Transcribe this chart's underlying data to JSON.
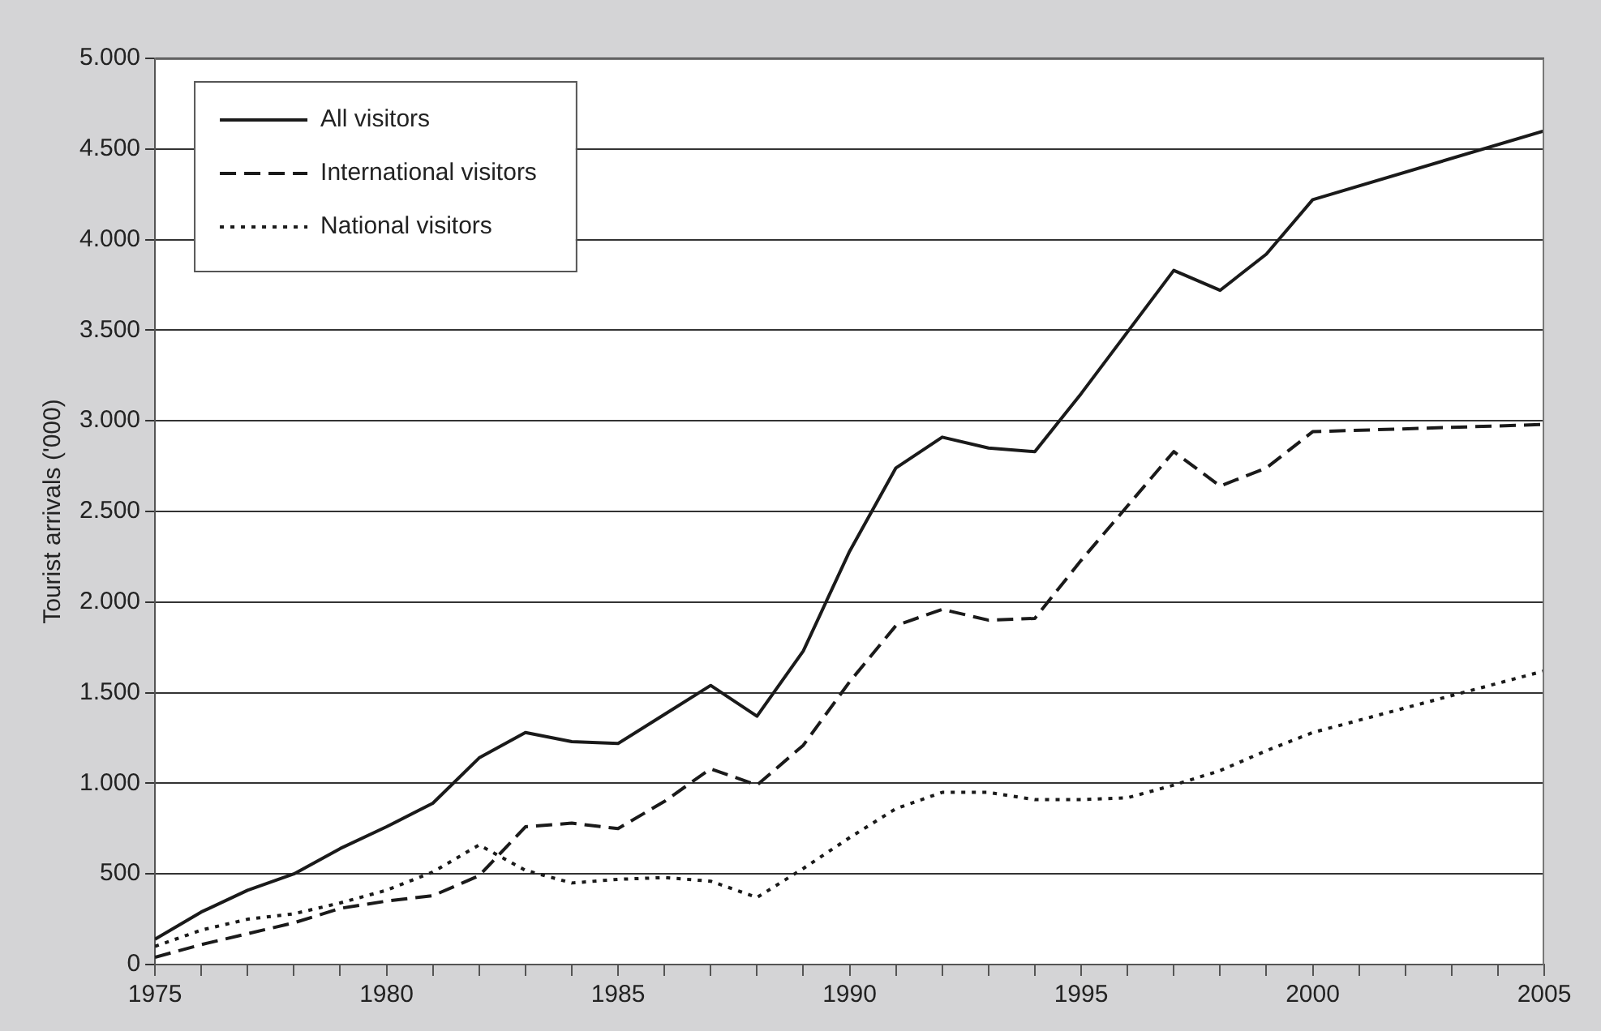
{
  "chart_data": {
    "type": "line",
    "ylabel": "Tourist arrivals ('000)",
    "x": [
      1975,
      1976,
      1977,
      1978,
      1979,
      1980,
      1981,
      1982,
      1983,
      1984,
      1985,
      1986,
      1987,
      1988,
      1989,
      1990,
      1991,
      1992,
      1993,
      1994,
      1995,
      1996,
      1997,
      1998,
      1999,
      2000,
      2005
    ],
    "series": [
      {
        "name": "All visitors",
        "color": "#1a1a1a",
        "line_style": "solid",
        "values": [
          140,
          290,
          410,
          500,
          640,
          760,
          890,
          1140,
          1280,
          1230,
          1220,
          1380,
          1540,
          1370,
          1730,
          2280,
          2740,
          2910,
          2850,
          2830,
          3150,
          3490,
          3830,
          3720,
          3920,
          4220,
          4600
        ]
      },
      {
        "name": "International visitors",
        "color": "#1a1a1a",
        "line_style": "dashed",
        "values": [
          40,
          110,
          170,
          230,
          310,
          350,
          380,
          490,
          760,
          780,
          750,
          900,
          1080,
          990,
          1210,
          1560,
          1870,
          1960,
          1900,
          1910,
          2230,
          2530,
          2830,
          2640,
          2740,
          2940,
          2980
        ]
      },
      {
        "name": "National visitors",
        "color": "#1a1a1a",
        "line_style": "dotted",
        "values": [
          100,
          190,
          250,
          280,
          340,
          410,
          510,
          660,
          520,
          450,
          470,
          480,
          460,
          370,
          530,
          700,
          860,
          950,
          950,
          910,
          910,
          920,
          990,
          1070,
          1180,
          1280,
          1620
        ]
      }
    ],
    "xlim": [
      1975,
      2005
    ],
    "xticks": [
      1975,
      {
        "value": 1976,
        "label": null
      },
      {
        "value": 1977,
        "label": null
      },
      {
        "value": 1978,
        "label": null
      },
      {
        "value": 1979,
        "label": null
      },
      1980,
      {
        "value": 1981,
        "label": null
      },
      {
        "value": 1982,
        "label": null
      },
      {
        "value": 1983,
        "label": null
      },
      {
        "value": 1984,
        "label": null
      },
      1985,
      {
        "value": 1986,
        "label": null
      },
      {
        "value": 1987,
        "label": null
      },
      {
        "value": 1988,
        "label": null
      },
      {
        "value": 1989,
        "label": null
      },
      1990,
      {
        "value": 1991,
        "label": null
      },
      {
        "value": 1992,
        "label": null
      },
      {
        "value": 1993,
        "label": null
      },
      {
        "value": 1994,
        "label": null
      },
      1995,
      {
        "value": 1996,
        "label": null
      },
      {
        "value": 1997,
        "label": null
      },
      {
        "value": 1998,
        "label": null
      },
      {
        "value": 1999,
        "label": null
      },
      2000,
      {
        "value": 2001,
        "label": null
      },
      {
        "value": 2002,
        "label": null
      },
      {
        "value": 2003,
        "label": null
      },
      {
        "value": 2004,
        "label": null
      },
      2005
    ],
    "ylim": [
      0,
      5000
    ],
    "yticks": [
      0,
      500,
      {
        "value": 1000,
        "label": "1.000"
      },
      {
        "value": 1500,
        "label": "1.500"
      },
      {
        "value": 2000,
        "label": "2.000"
      },
      {
        "value": 2500,
        "label": "2.500"
      },
      {
        "value": 3000,
        "label": "3.000"
      },
      {
        "value": 3500,
        "label": "3.500"
      },
      {
        "value": 4000,
        "label": "4.000"
      },
      {
        "value": 4500,
        "label": "4.500"
      },
      {
        "value": 5000,
        "label": "5.000"
      }
    ],
    "grid": "y",
    "legend": "top left",
    "marker": "none"
  }
}
